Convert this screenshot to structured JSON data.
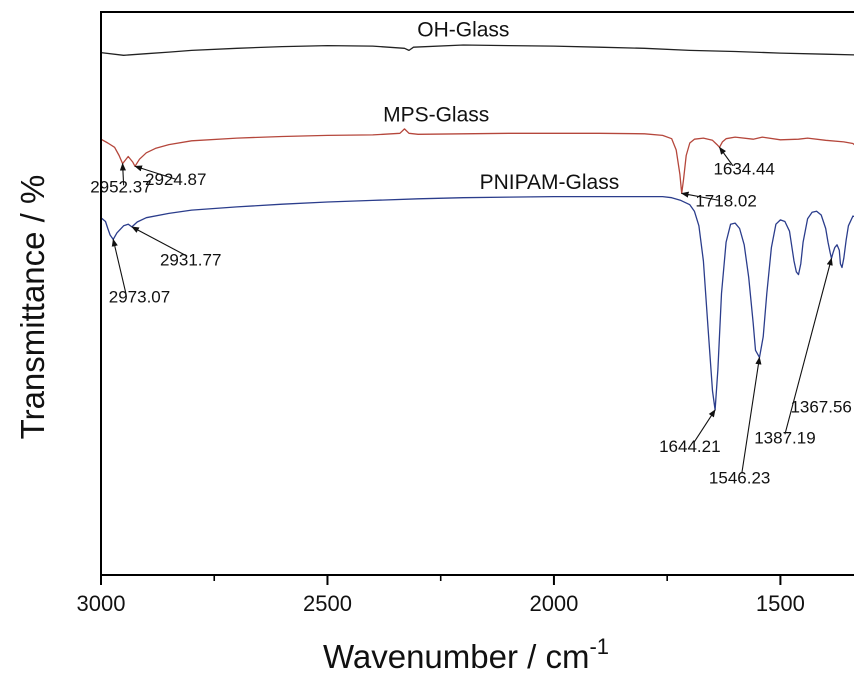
{
  "chart_data": {
    "type": "line",
    "xlabel": "Wavenumber / cm",
    "xlabel_sup": "-1",
    "ylabel": "Transmittance / %",
    "xlim": [
      3000,
      1300
    ],
    "x_reversed": true,
    "y_ticks_shown": false,
    "x_ticks": [
      3000,
      2500,
      2000,
      1500
    ],
    "x_tick_labels": [
      "3000",
      "2500",
      "2000",
      "1500"
    ],
    "grid": false,
    "legend": "none",
    "series": [
      {
        "name": "OH-Glass",
        "color": "#222222",
        "x": [
          3000,
          2950,
          2900,
          2850,
          2800,
          2700,
          2600,
          2500,
          2400,
          2330,
          2320,
          2310,
          2200,
          2100,
          2000,
          1900,
          1800,
          1700,
          1600,
          1500,
          1400,
          1300
        ],
        "y": [
          96.5,
          96.0,
          96.3,
          96.6,
          96.9,
          97.3,
          97.6,
          97.8,
          97.7,
          97.3,
          96.9,
          97.5,
          97.9,
          97.8,
          97.7,
          97.5,
          97.3,
          96.9,
          96.7,
          96.4,
          96.2,
          96.0
        ]
      },
      {
        "name": "MPS-Glass",
        "color": "#b5473c",
        "x": [
          3000,
          2985,
          2970,
          2960,
          2952.37,
          2940,
          2930,
          2924.87,
          2915,
          2900,
          2880,
          2850,
          2800,
          2700,
          2600,
          2500,
          2400,
          2340,
          2330,
          2320,
          2300,
          2200,
          2100,
          2000,
          1900,
          1800,
          1760,
          1740,
          1730,
          1722,
          1718.02,
          1714,
          1708,
          1700,
          1690,
          1670,
          1650,
          1640,
          1634.44,
          1628,
          1620,
          1600,
          1560,
          1540,
          1500,
          1460,
          1440,
          1400,
          1360,
          1340,
          1320,
          1310,
          1300
        ],
        "y": [
          80.5,
          79.8,
          79.0,
          77.5,
          76.0,
          77.3,
          76.3,
          75.5,
          76.8,
          78.0,
          78.8,
          79.5,
          80.2,
          80.7,
          81.0,
          81.2,
          81.3,
          81.6,
          82.4,
          81.6,
          81.4,
          81.5,
          81.6,
          81.6,
          81.6,
          81.5,
          81.2,
          80.6,
          78.5,
          74.0,
          70.5,
          73.0,
          77.5,
          79.8,
          80.5,
          80.7,
          80.3,
          79.5,
          79.0,
          80.0,
          80.6,
          80.9,
          80.5,
          80.9,
          80.4,
          80.5,
          80.7,
          80.3,
          80.0,
          79.7,
          78.3,
          77.0,
          77.8
        ]
      },
      {
        "name": "PNIPAM-Glass",
        "color": "#2b3d8c",
        "x": [
          3000,
          2990,
          2985,
          2980,
          2973.07,
          2965,
          2950,
          2940,
          2931.77,
          2920,
          2900,
          2850,
          2800,
          2700,
          2600,
          2500,
          2400,
          2300,
          2200,
          2100,
          2000,
          1900,
          1800,
          1760,
          1740,
          1720,
          1700,
          1690,
          1680,
          1670,
          1660,
          1650,
          1644.21,
          1638,
          1630,
          1620,
          1610,
          1600,
          1590,
          1580,
          1570,
          1560,
          1555,
          1546.23,
          1538,
          1530,
          1520,
          1510,
          1500,
          1490,
          1480,
          1470,
          1465,
          1460,
          1455,
          1450,
          1440,
          1430,
          1420,
          1410,
          1400,
          1395,
          1390,
          1387.19,
          1384,
          1380,
          1375,
          1370,
          1367.56,
          1364,
          1360,
          1355,
          1350,
          1340,
          1330,
          1320,
          1310,
          1300
        ],
        "y": [
          66.0,
          65.3,
          64.0,
          62.8,
          62.0,
          63.2,
          64.5,
          64.8,
          64.3,
          65.2,
          66.0,
          66.8,
          67.4,
          68.0,
          68.5,
          68.9,
          69.2,
          69.5,
          69.7,
          69.8,
          69.9,
          69.9,
          69.9,
          69.9,
          69.7,
          69.2,
          68.4,
          67.2,
          64.5,
          58.0,
          46.0,
          34.0,
          30.5,
          38.0,
          52.0,
          61.5,
          64.8,
          65.0,
          64.0,
          61.0,
          55.0,
          46.5,
          41.5,
          40.2,
          44.0,
          52.0,
          60.5,
          64.8,
          65.6,
          65.3,
          63.5,
          58.0,
          56.0,
          55.5,
          57.5,
          61.5,
          65.8,
          67.0,
          67.2,
          66.5,
          64.0,
          61.5,
          59.5,
          58.5,
          59.5,
          60.5,
          61.0,
          60.0,
          57.5,
          56.8,
          58.5,
          61.8,
          64.5,
          66.3,
          66.0,
          65.6,
          65.8,
          67.0
        ]
      }
    ],
    "series_labels": [
      {
        "text": "OH-Glass",
        "x": 2200,
        "y": 99.5
      },
      {
        "text": "MPS-Glass",
        "x": 2260,
        "y": 83.8
      },
      {
        "text": "PNIPAM-Glass",
        "x": 2010,
        "y": 71.3
      }
    ],
    "annotations": [
      {
        "text": "2952.37",
        "x": 2956,
        "y": 70.7,
        "point": [
          2952.37,
          76.0
        ],
        "text_anchor": [
          2950,
          72.0
        ]
      },
      {
        "text": "2924.87",
        "x": 2835,
        "y": 72.0,
        "point": [
          2924.87,
          75.5
        ],
        "text_anchor": [
          2835,
          73.1
        ]
      },
      {
        "text": "1718.02",
        "x": 1620,
        "y": 68.1,
        "point": [
          1718.02,
          70.5
        ],
        "text_anchor": [
          1635,
          69.2
        ]
      },
      {
        "text": "1634.44",
        "x": 1580,
        "y": 74.0,
        "point": [
          1634.44,
          79.0
        ],
        "text_anchor": [
          1605,
          75.6
        ]
      },
      {
        "text": "2973.07",
        "x": 2915,
        "y": 50.3,
        "point": [
          2973.07,
          62.0
        ],
        "text_anchor": [
          2945,
          52.0
        ]
      },
      {
        "text": "2931.77",
        "x": 2802,
        "y": 57.2,
        "point": [
          2931.77,
          64.3
        ],
        "text_anchor": [
          2810,
          58.9
        ]
      },
      {
        "text": "1644.21",
        "x": 1700,
        "y": 22.7,
        "point": [
          1644.21,
          30.5
        ],
        "text_anchor": [
          1690,
          24.6
        ]
      },
      {
        "text": "1546.23",
        "x": 1590,
        "y": 16.9,
        "point": [
          1546.23,
          40.2
        ],
        "text_anchor": [
          1585,
          18.9
        ]
      },
      {
        "text": "1387.19",
        "x": 1490,
        "y": 24.3,
        "point": [
          1387.19,
          58.5
        ],
        "text_anchor": [
          1490,
          26.0
        ]
      },
      {
        "text": "1367.56",
        "x": 1410,
        "y": 30.0,
        "point": null,
        "text_anchor": null
      }
    ]
  }
}
